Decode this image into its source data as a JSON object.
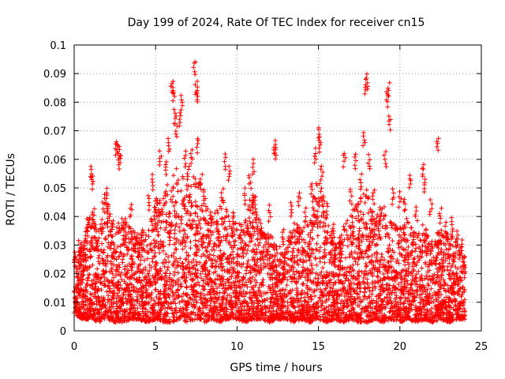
{
  "chart_data": {
    "type": "scatter",
    "title": "Day 199 of 2024, Rate Of TEC Index for receiver cn15",
    "xlabel": "GPS time / hours",
    "ylabel": "ROTI / TECUs",
    "xlim": [
      0,
      25
    ],
    "ylim": [
      0,
      0.1
    ],
    "xticks": [
      "0",
      "5",
      "10",
      "15",
      "20",
      "25"
    ],
    "yticks": [
      "0",
      "0.01",
      "0.02",
      "0.03",
      "0.04",
      "0.05",
      "0.06",
      "0.07",
      "0.08",
      "0.09",
      "0.1"
    ],
    "grid": true,
    "marker": "+",
    "color": "#ff0000",
    "series": [
      {
        "name": "ROTI",
        "points": [
          [
            0.05,
            0.028
          ],
          [
            0.3,
            0.032
          ],
          [
            0.5,
            0.031
          ],
          [
            0.8,
            0.04
          ],
          [
            1.0,
            0.058
          ],
          [
            1.1,
            0.055
          ],
          [
            1.2,
            0.043
          ],
          [
            1.5,
            0.033
          ],
          [
            1.8,
            0.048
          ],
          [
            2.0,
            0.05
          ],
          [
            2.1,
            0.045
          ],
          [
            2.3,
            0.038
          ],
          [
            2.6,
            0.067
          ],
          [
            2.7,
            0.066
          ],
          [
            2.75,
            0.065
          ],
          [
            2.8,
            0.062
          ],
          [
            3.1,
            0.04
          ],
          [
            3.5,
            0.045
          ],
          [
            3.8,
            0.033
          ],
          [
            4.2,
            0.036
          ],
          [
            4.6,
            0.048
          ],
          [
            4.8,
            0.055
          ],
          [
            5.0,
            0.047
          ],
          [
            5.3,
            0.063
          ],
          [
            5.6,
            0.06
          ],
          [
            5.8,
            0.068
          ],
          [
            6.0,
            0.088
          ],
          [
            6.1,
            0.086
          ],
          [
            6.2,
            0.078
          ],
          [
            6.25,
            0.073
          ],
          [
            6.5,
            0.077
          ],
          [
            6.6,
            0.083
          ],
          [
            6.8,
            0.063
          ],
          [
            7.0,
            0.058
          ],
          [
            7.2,
            0.064
          ],
          [
            7.4,
            0.095
          ],
          [
            7.5,
            0.088
          ],
          [
            7.55,
            0.085
          ],
          [
            7.6,
            0.068
          ],
          [
            7.8,
            0.055
          ],
          [
            8.0,
            0.05
          ],
          [
            8.4,
            0.042
          ],
          [
            8.8,
            0.039
          ],
          [
            9.1,
            0.05
          ],
          [
            9.3,
            0.062
          ],
          [
            9.5,
            0.058
          ],
          [
            9.8,
            0.04
          ],
          [
            10.2,
            0.038
          ],
          [
            10.5,
            0.05
          ],
          [
            10.8,
            0.055
          ],
          [
            11.0,
            0.06
          ],
          [
            11.1,
            0.047
          ],
          [
            11.5,
            0.038
          ],
          [
            12.0,
            0.044
          ],
          [
            12.3,
            0.067
          ],
          [
            12.35,
            0.065
          ],
          [
            12.8,
            0.036
          ],
          [
            13.3,
            0.045
          ],
          [
            13.8,
            0.049
          ],
          [
            14.2,
            0.043
          ],
          [
            14.6,
            0.052
          ],
          [
            14.8,
            0.064
          ],
          [
            15.0,
            0.072
          ],
          [
            15.1,
            0.068
          ],
          [
            15.2,
            0.058
          ],
          [
            15.5,
            0.045
          ],
          [
            15.9,
            0.038
          ],
          [
            16.3,
            0.033
          ],
          [
            16.6,
            0.063
          ],
          [
            17.0,
            0.05
          ],
          [
            17.3,
            0.062
          ],
          [
            17.6,
            0.055
          ],
          [
            17.8,
            0.07
          ],
          [
            17.9,
            0.088
          ],
          [
            18.0,
            0.09
          ],
          [
            18.1,
            0.062
          ],
          [
            18.4,
            0.05
          ],
          [
            18.8,
            0.044
          ],
          [
            19.1,
            0.063
          ],
          [
            19.2,
            0.084
          ],
          [
            19.3,
            0.087
          ],
          [
            19.35,
            0.076
          ],
          [
            19.6,
            0.05
          ],
          [
            20.0,
            0.049
          ],
          [
            20.3,
            0.047
          ],
          [
            20.6,
            0.055
          ],
          [
            21.0,
            0.044
          ],
          [
            21.4,
            0.059
          ],
          [
            21.5,
            0.054
          ],
          [
            21.9,
            0.046
          ],
          [
            22.3,
            0.068
          ],
          [
            22.5,
            0.043
          ],
          [
            22.8,
            0.038
          ],
          [
            23.2,
            0.04
          ],
          [
            23.5,
            0.035
          ],
          [
            23.8,
            0.032
          ],
          [
            23.95,
            0.025
          ]
        ],
        "envelope": {
          "x": [
            0,
            0.5,
            1,
            1.5,
            2,
            2.5,
            3,
            3.5,
            4,
            4.5,
            5,
            5.5,
            6,
            6.5,
            7,
            7.5,
            8,
            8.5,
            9,
            9.5,
            10,
            10.5,
            11,
            11.5,
            12,
            12.5,
            13,
            13.5,
            14,
            14.5,
            15,
            15.5,
            16,
            16.5,
            17,
            17.5,
            18,
            18.5,
            19,
            19.5,
            20,
            20.5,
            21,
            21.5,
            22,
            22.5,
            23,
            23.5,
            24
          ],
          "upper": [
            0.026,
            0.03,
            0.042,
            0.036,
            0.046,
            0.038,
            0.04,
            0.036,
            0.034,
            0.035,
            0.045,
            0.05,
            0.06,
            0.057,
            0.052,
            0.055,
            0.048,
            0.04,
            0.045,
            0.048,
            0.036,
            0.042,
            0.05,
            0.035,
            0.034,
            0.03,
            0.031,
            0.038,
            0.036,
            0.042,
            0.055,
            0.042,
            0.032,
            0.036,
            0.042,
            0.046,
            0.05,
            0.04,
            0.044,
            0.038,
            0.036,
            0.04,
            0.034,
            0.038,
            0.032,
            0.036,
            0.034,
            0.033,
            0.026
          ],
          "lower": [
            0.006,
            0.004,
            0.004,
            0.003,
            0.004,
            0.003,
            0.003,
            0.004,
            0.004,
            0.003,
            0.004,
            0.003,
            0.003,
            0.004,
            0.003,
            0.004,
            0.003,
            0.004,
            0.003,
            0.004,
            0.004,
            0.003,
            0.004,
            0.004,
            0.003,
            0.004,
            0.004,
            0.003,
            0.004,
            0.003,
            0.004,
            0.003,
            0.004,
            0.003,
            0.004,
            0.003,
            0.003,
            0.004,
            0.003,
            0.004,
            0.003,
            0.004,
            0.003,
            0.004,
            0.003,
            0.004,
            0.003,
            0.004,
            0.004
          ]
        }
      }
    ]
  }
}
